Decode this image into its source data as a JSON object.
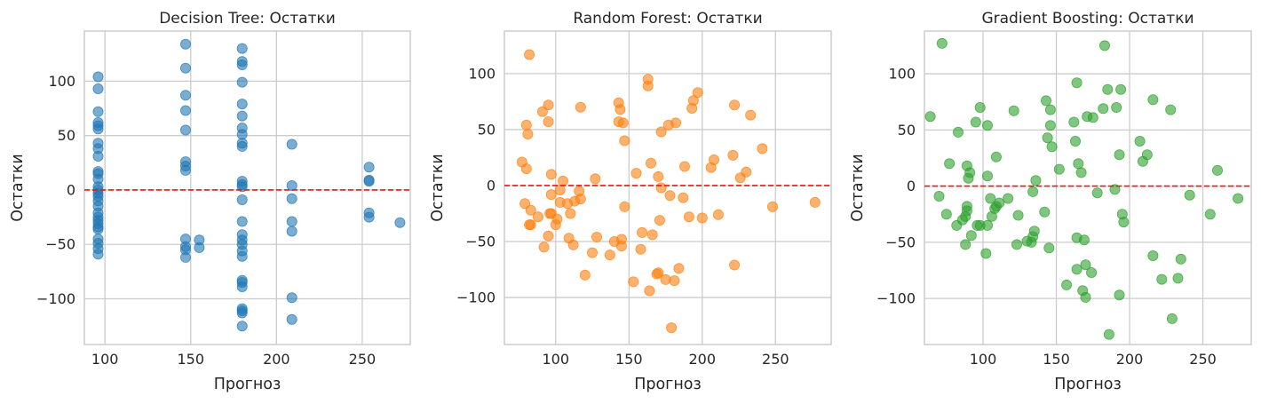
{
  "chart_data": [
    {
      "type": "scatter",
      "title": "Decision Tree: Остатки",
      "xlabel": "Прогноз",
      "ylabel": "Остатки",
      "xlim": [
        88,
        278
      ],
      "ylim": [
        -142,
        146
      ],
      "xticks": [
        100,
        150,
        200,
        250
      ],
      "yticks": [
        -100,
        -50,
        0,
        50,
        100
      ],
      "grid": true,
      "color": "#1f77b4",
      "reference_line": {
        "y": 0,
        "style": "dashed",
        "color": "#e31a1c"
      },
      "points": [
        [
          96,
          104
        ],
        [
          96,
          93
        ],
        [
          96,
          72
        ],
        [
          96,
          62
        ],
        [
          96,
          59
        ],
        [
          96,
          56
        ],
        [
          96,
          43
        ],
        [
          96,
          38
        ],
        [
          96,
          31
        ],
        [
          96,
          17
        ],
        [
          96,
          15
        ],
        [
          96,
          10
        ],
        [
          96,
          3
        ],
        [
          96,
          0
        ],
        [
          96,
          -3
        ],
        [
          96,
          -6
        ],
        [
          96,
          -10
        ],
        [
          96,
          -15
        ],
        [
          96,
          -21
        ],
        [
          96,
          -25
        ],
        [
          96,
          -28
        ],
        [
          96,
          -31
        ],
        [
          96,
          -34
        ],
        [
          96,
          -36
        ],
        [
          96,
          -45
        ],
        [
          96,
          -49
        ],
        [
          96,
          -54
        ],
        [
          96,
          -59
        ],
        [
          147,
          134
        ],
        [
          147,
          112
        ],
        [
          147,
          87
        ],
        [
          147,
          73
        ],
        [
          147,
          55
        ],
        [
          147,
          26
        ],
        [
          147,
          22
        ],
        [
          147,
          18
        ],
        [
          147,
          -45
        ],
        [
          147,
          -52
        ],
        [
          147,
          -55
        ],
        [
          147,
          -62
        ],
        [
          155,
          -46
        ],
        [
          155,
          -53
        ],
        [
          180,
          130
        ],
        [
          180,
          118
        ],
        [
          180,
          115
        ],
        [
          180,
          99
        ],
        [
          180,
          79
        ],
        [
          180,
          68
        ],
        [
          180,
          57
        ],
        [
          180,
          51
        ],
        [
          180,
          43
        ],
        [
          180,
          40
        ],
        [
          180,
          8
        ],
        [
          180,
          5
        ],
        [
          180,
          3
        ],
        [
          180,
          -9
        ],
        [
          180,
          -29
        ],
        [
          180,
          -41
        ],
        [
          180,
          -46
        ],
        [
          180,
          -50
        ],
        [
          180,
          -56
        ],
        [
          180,
          -61
        ],
        [
          180,
          -83
        ],
        [
          180,
          -85
        ],
        [
          180,
          -89
        ],
        [
          180,
          -109
        ],
        [
          180,
          -111
        ],
        [
          180,
          -113
        ],
        [
          180,
          -125
        ],
        [
          209,
          42
        ],
        [
          209,
          4
        ],
        [
          209,
          -8
        ],
        [
          209,
          -29
        ],
        [
          209,
          -38
        ],
        [
          209,
          -99
        ],
        [
          209,
          -119
        ],
        [
          254,
          21
        ],
        [
          254,
          9
        ],
        [
          254,
          8
        ],
        [
          254,
          -21
        ],
        [
          254,
          -25
        ],
        [
          272,
          -30
        ]
      ]
    },
    {
      "type": "scatter",
      "title": "Random Forest: Остатки",
      "xlabel": "Прогноз",
      "ylabel": "Остатки",
      "xlim": [
        65,
        288
      ],
      "ylim": [
        -142,
        138
      ],
      "xticks": [
        100,
        150,
        200,
        250
      ],
      "yticks": [
        -100,
        -50,
        0,
        50,
        100
      ],
      "grid": true,
      "color": "#ff7f0e",
      "reference_line": {
        "y": 0,
        "style": "dashed",
        "color": "#e31a1c"
      },
      "points": [
        [
          77,
          21
        ],
        [
          79,
          -16
        ],
        [
          80,
          54
        ],
        [
          80,
          15
        ],
        [
          81,
          46
        ],
        [
          82,
          117
        ],
        [
          82,
          -35
        ],
        [
          83,
          -35
        ],
        [
          83,
          -22
        ],
        [
          88,
          -28
        ],
        [
          91,
          66
        ],
        [
          92,
          -55
        ],
        [
          95,
          72
        ],
        [
          95,
          57
        ],
        [
          95,
          -45
        ],
        [
          96,
          -25
        ],
        [
          97,
          -25
        ],
        [
          97,
          -8
        ],
        [
          97,
          10
        ],
        [
          100,
          -35
        ],
        [
          101,
          -30
        ],
        [
          103,
          -4
        ],
        [
          103,
          -15
        ],
        [
          105,
          4
        ],
        [
          108,
          -16
        ],
        [
          109,
          -47
        ],
        [
          110,
          -25
        ],
        [
          112,
          -53
        ],
        [
          113,
          -14
        ],
        [
          116,
          -5
        ],
        [
          117,
          -12
        ],
        [
          117,
          70
        ],
        [
          120,
          -80
        ],
        [
          125,
          -60
        ],
        [
          127,
          6
        ],
        [
          128,
          -46
        ],
        [
          137,
          -62
        ],
        [
          140,
          -50
        ],
        [
          143,
          74
        ],
        [
          143,
          57
        ],
        [
          144,
          68
        ],
        [
          145,
          -48
        ],
        [
          145,
          -54
        ],
        [
          146,
          56
        ],
        [
          147,
          40
        ],
        [
          147,
          -19
        ],
        [
          153,
          -86
        ],
        [
          155,
          11
        ],
        [
          158,
          -57
        ],
        [
          159,
          -42
        ],
        [
          163,
          95
        ],
        [
          163,
          89
        ],
        [
          164,
          -94
        ],
        [
          165,
          20
        ],
        [
          166,
          -44
        ],
        [
          169,
          -79
        ],
        [
          170,
          -78
        ],
        [
          170,
          8
        ],
        [
          171,
          -31
        ],
        [
          172,
          48
        ],
        [
          172,
          -2
        ],
        [
          175,
          -84
        ],
        [
          177,
          54
        ],
        [
          178,
          -9
        ],
        [
          179,
          -127
        ],
        [
          181,
          -85
        ],
        [
          182,
          56
        ],
        [
          184,
          -74
        ],
        [
          187,
          -11
        ],
        [
          188,
          17
        ],
        [
          191,
          -28
        ],
        [
          193,
          69
        ],
        [
          194,
          76
        ],
        [
          197,
          83
        ],
        [
          200,
          -29
        ],
        [
          206,
          16
        ],
        [
          208,
          23
        ],
        [
          211,
          -26
        ],
        [
          221,
          27
        ],
        [
          222,
          72
        ],
        [
          222,
          -71
        ],
        [
          226,
          7
        ],
        [
          230,
          12
        ],
        [
          233,
          63
        ],
        [
          241,
          33
        ],
        [
          248,
          -19
        ],
        [
          277,
          -15
        ]
      ]
    },
    {
      "type": "scatter",
      "title": "Gradient Boosting: Остатки",
      "xlabel": "Прогноз",
      "ylabel": "Остатки",
      "xlim": [
        60,
        283
      ],
      "ylim": [
        -141,
        138
      ],
      "xticks": [
        100,
        150,
        200,
        250
      ],
      "yticks": [
        -100,
        -50,
        0,
        50,
        100
      ],
      "grid": true,
      "color": "#2ca02c",
      "reference_line": {
        "y": 0,
        "style": "dashed",
        "color": "#e31a1c"
      },
      "points": [
        [
          64,
          62
        ],
        [
          70,
          -9
        ],
        [
          72,
          127
        ],
        [
          75,
          -25
        ],
        [
          77,
          20
        ],
        [
          82,
          -35
        ],
        [
          83,
          48
        ],
        [
          86,
          -30
        ],
        [
          88,
          -27
        ],
        [
          88,
          -52
        ],
        [
          89,
          18
        ],
        [
          89,
          -18
        ],
        [
          89,
          -22
        ],
        [
          90,
          7
        ],
        [
          91,
          12
        ],
        [
          92,
          -44
        ],
        [
          95,
          57
        ],
        [
          96,
          -35
        ],
        [
          98,
          70
        ],
        [
          98,
          -35
        ],
        [
          102,
          -60
        ],
        [
          103,
          54
        ],
        [
          103,
          9
        ],
        [
          103,
          -35
        ],
        [
          105,
          -11
        ],
        [
          106,
          -27
        ],
        [
          108,
          -20
        ],
        [
          109,
          -18
        ],
        [
          109,
          26
        ],
        [
          111,
          -15
        ],
        [
          117,
          -11
        ],
        [
          121,
          67
        ],
        [
          123,
          -52
        ],
        [
          124,
          -26
        ],
        [
          130,
          -49
        ],
        [
          133,
          -50
        ],
        [
          134,
          -45
        ],
        [
          134,
          -5
        ],
        [
          135,
          -40
        ],
        [
          136,
          5
        ],
        [
          142,
          -23
        ],
        [
          143,
          76
        ],
        [
          144,
          43
        ],
        [
          145,
          -55
        ],
        [
          146,
          54
        ],
        [
          146,
          68
        ],
        [
          147,
          35
        ],
        [
          152,
          15
        ],
        [
          157,
          -88
        ],
        [
          162,
          57
        ],
        [
          163,
          40
        ],
        [
          164,
          -46
        ],
        [
          164,
          -74
        ],
        [
          164,
          92
        ],
        [
          165,
          20
        ],
        [
          167,
          12
        ],
        [
          168,
          -93
        ],
        [
          169,
          -48
        ],
        [
          170,
          -70
        ],
        [
          170,
          -99
        ],
        [
          171,
          62
        ],
        [
          174,
          -77
        ],
        [
          175,
          61
        ],
        [
          178,
          -6
        ],
        [
          182,
          69
        ],
        [
          183,
          125
        ],
        [
          185,
          86
        ],
        [
          186,
          -132
        ],
        [
          190,
          -3
        ],
        [
          191,
          70
        ],
        [
          193,
          -97
        ],
        [
          193,
          28
        ],
        [
          194,
          86
        ],
        [
          195,
          -25
        ],
        [
          196,
          -32
        ],
        [
          207,
          40
        ],
        [
          209,
          22
        ],
        [
          212,
          28
        ],
        [
          216,
          77
        ],
        [
          216,
          -62
        ],
        [
          222,
          -83
        ],
        [
          228,
          68
        ],
        [
          229,
          -118
        ],
        [
          233,
          -82
        ],
        [
          235,
          -65
        ],
        [
          241,
          -8
        ],
        [
          255,
          -25
        ],
        [
          260,
          14
        ],
        [
          274,
          -11
        ]
      ]
    }
  ]
}
